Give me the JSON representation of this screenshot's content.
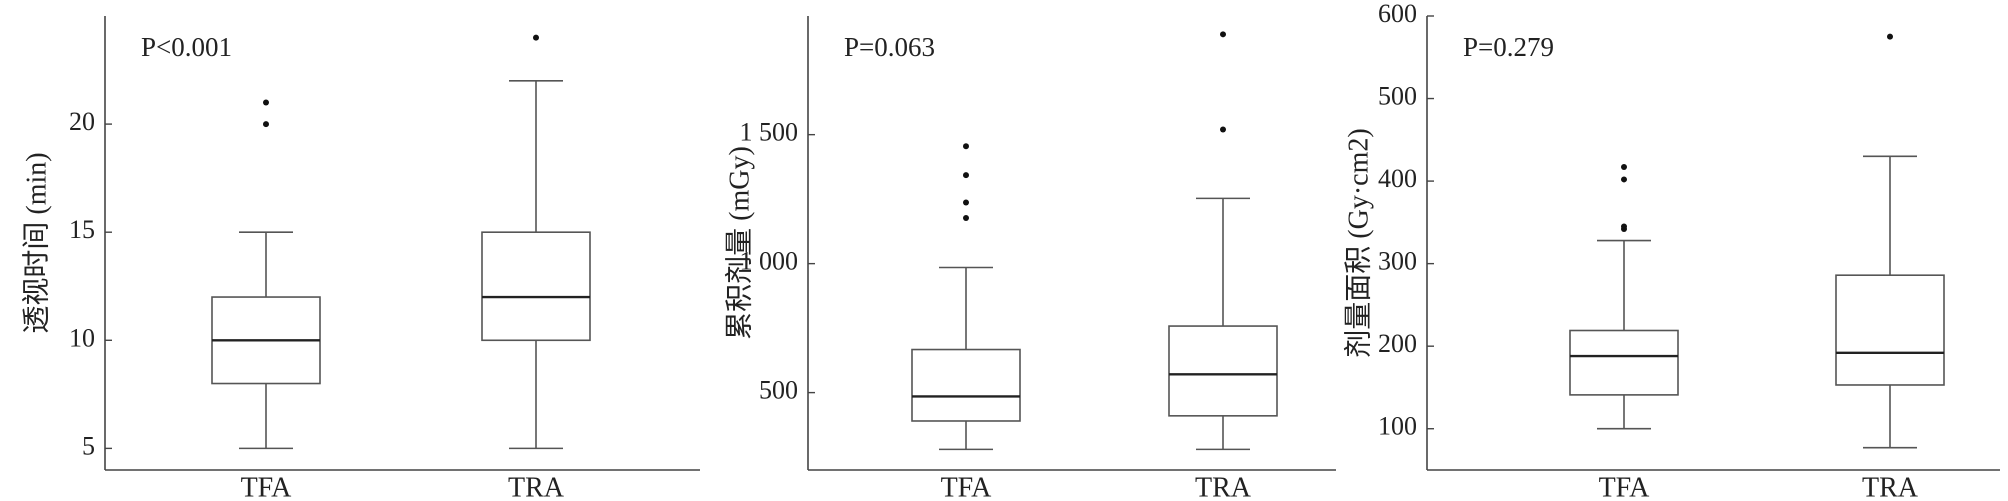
{
  "chart_data": [
    {
      "type": "box",
      "ylabel": "透视时间 (min)",
      "annotation": "P<0.001",
      "categories": [
        "TFA",
        "TRA"
      ],
      "color": "#555555",
      "ylim": [
        4,
        25
      ],
      "yticks": [
        5,
        10,
        15,
        20
      ],
      "boxes": [
        {
          "min": 5,
          "q1": 8,
          "median": 10,
          "q3": 12,
          "max": 15,
          "outliers": [
            20,
            21
          ]
        },
        {
          "min": 5,
          "q1": 10,
          "median": 12,
          "q3": 15,
          "max": 22,
          "outliers": [
            24
          ]
        }
      ]
    },
    {
      "type": "box",
      "ylabel": "累积剂量 (mGy)",
      "annotation": "P=0.063",
      "categories": [
        "TFA",
        "TRA"
      ],
      "color": "#555555",
      "ylim": [
        200,
        1960
      ],
      "yticks": [
        500,
        {
          "value": 1000,
          "label": "1 000"
        },
        {
          "value": 1500,
          "label": "1 500"
        }
      ],
      "boxes": [
        {
          "min": 280,
          "q1": 390,
          "median": 485,
          "q3": 667,
          "max": 985,
          "outliers": [
            1177,
            1237,
            1343,
            1455
          ]
        },
        {
          "min": 280,
          "q1": 410,
          "median": 571,
          "q3": 758,
          "max": 1253,
          "outliers": [
            1520,
            1889
          ]
        }
      ]
    },
    {
      "type": "box",
      "ylabel": "剂量面积 (Gy·cm2)",
      "annotation": "P=0.279",
      "categories": [
        "TFA",
        "TRA"
      ],
      "color": "#555555",
      "ylim": [
        50,
        600
      ],
      "yticks": [
        100,
        200,
        300,
        400,
        500,
        600
      ],
      "boxes": [
        {
          "min": 100,
          "q1": 141,
          "median": 188,
          "q3": 219,
          "max": 328,
          "outliers": [
            342,
            345,
            402,
            417
          ]
        },
        {
          "min": 77,
          "q1": 153,
          "median": 192,
          "q3": 286,
          "max": 430,
          "outliers": [
            575
          ]
        }
      ]
    }
  ]
}
